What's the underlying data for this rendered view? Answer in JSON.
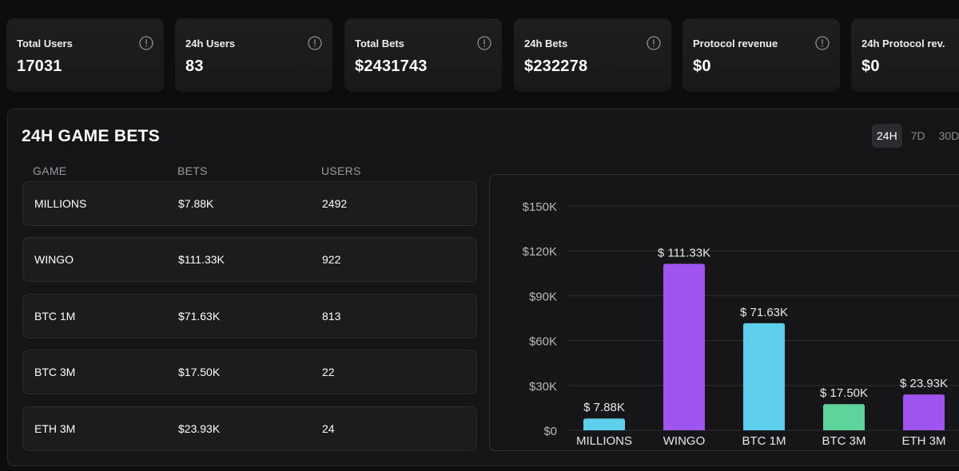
{
  "stats": [
    {
      "label": "Total Users",
      "value": "17031"
    },
    {
      "label": "24h Users",
      "value": "83"
    },
    {
      "label": "Total Bets",
      "value": "$2431743"
    },
    {
      "label": "24h Bets",
      "value": "$232278"
    },
    {
      "label": "Protocol revenue",
      "value": "$0"
    },
    {
      "label": "24h Protocol rev.",
      "value": "$0"
    }
  ],
  "panel": {
    "title": "24H GAME BETS",
    "range_tabs": [
      "24H",
      "7D",
      "30D"
    ],
    "active_tab": "24H",
    "columns": {
      "game": "GAME",
      "bets": "BETS",
      "users": "USERS"
    },
    "rows": [
      {
        "game": "MILLIONS",
        "bets": "$7.88K",
        "users": "2492"
      },
      {
        "game": "WINGO",
        "bets": "$111.33K",
        "users": "922"
      },
      {
        "game": "BTC 1M",
        "bets": "$71.63K",
        "users": "813"
      },
      {
        "game": "BTC 3M",
        "bets": "$17.50K",
        "users": "22"
      },
      {
        "game": "ETH 3M",
        "bets": "$23.93K",
        "users": "24"
      }
    ]
  },
  "chart_data": {
    "type": "bar",
    "categories": [
      "MILLIONS",
      "WINGO",
      "BTC 1M",
      "BTC 3M",
      "ETH 3M"
    ],
    "values": [
      7.88,
      111.33,
      71.63,
      17.5,
      23.93
    ],
    "data_labels": [
      "$ 7.88K",
      "$ 111.33K",
      "$ 71.63K",
      "$ 17.50K",
      "$ 23.93K"
    ],
    "colors": [
      "#5ecfec",
      "#a054ee",
      "#5ecfec",
      "#5ed39c",
      "#a054ee"
    ],
    "yticks": [
      0,
      30,
      60,
      90,
      120,
      150
    ],
    "ytick_labels": [
      "$0",
      "$30K",
      "$60K",
      "$90K",
      "$120K",
      "$150K"
    ],
    "ylim": [
      0,
      150
    ],
    "title": "",
    "xlabel": "",
    "ylabel": ""
  }
}
